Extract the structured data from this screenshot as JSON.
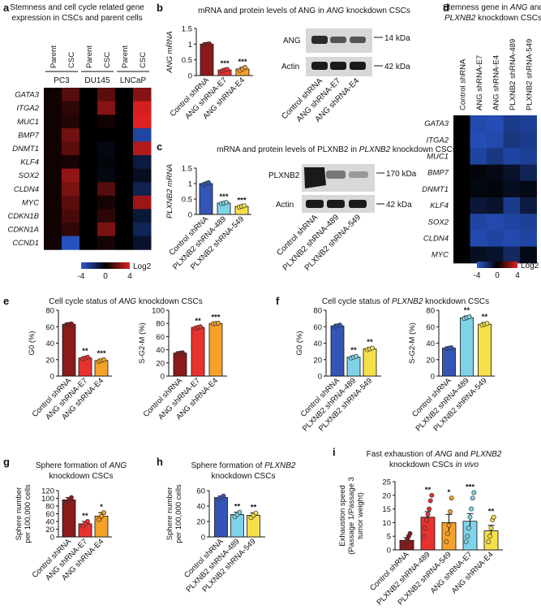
{
  "panels": {
    "a": {
      "letter": "a",
      "title": [
        "Stemness and cell cycle related gene",
        "expression in CSCs and parent cells"
      ]
    },
    "b": {
      "letter": "b",
      "title_parts": [
        "mRNA and protein levels of ANG in ",
        "ANG",
        " knockdown CSCs"
      ]
    },
    "c": {
      "letter": "c",
      "title_parts": [
        "mRNA and protein levels of PLXNB2 in ",
        "PLXNB2",
        " knockdown CSCs"
      ]
    },
    "d": {
      "letter": "d",
      "title_l1": "Stemness gene in ",
      "title_l1_i1": "ANG",
      "title_l1_mid": " and",
      "title_l2_i": "PLXNB2",
      "title_l2": " knockdown CSCs"
    },
    "e": {
      "letter": "e",
      "title_parts": [
        "Cell cycle status of ",
        "ANG",
        " knockdown CSCs"
      ]
    },
    "f": {
      "letter": "f",
      "title_parts": [
        "Cell cycle status of ",
        "PLXNB2",
        " knockdown CSCs"
      ]
    },
    "g": {
      "letter": "g",
      "title_l1": "Sphere formation of ",
      "title_l1_i": "ANG",
      "title_l2": "knockdown CSCs"
    },
    "h": {
      "letter": "h",
      "title_l1": "Sphere formation of ",
      "title_l1_i": "PLXNB2",
      "title_l2": "knockdown CSCs"
    },
    "i": {
      "letter": "i",
      "title_l1_a": "Fast exhaustion of ",
      "title_l1_i1": "ANG",
      "title_l1_b": " and ",
      "title_l1_i2": "PLXNB2",
      "title_l2_a": "knockdown CSCs ",
      "title_l2_i": "in vivo"
    }
  },
  "heatmap_colors": {
    "low": "#2b5bd6",
    "mid": "#000000",
    "high": "#e02020"
  },
  "westerns": {
    "b": {
      "bands": [
        "ANG",
        "Actin"
      ],
      "sizes": [
        "14 kDa",
        "42 kDa"
      ],
      "lanes": [
        "Control shRNA",
        "ANG shRNA-E7",
        "ANG shRNA-E4"
      ]
    },
    "c": {
      "bands": [
        "PLXNB2",
        "Actin"
      ],
      "sizes": [
        "170 kDa",
        "42 kDa"
      ],
      "lanes": [
        "Control shRNA",
        "PLXNB2 shRNA-489",
        "PLXNB2 shRNA-549"
      ]
    }
  },
  "chart_data": [
    {
      "id": "a",
      "type": "heatmap",
      "groups": [
        "PC3",
        "DU145",
        "LNCaP"
      ],
      "columns": [
        "Parent",
        "CSC",
        "Parent",
        "CSC",
        "Parent",
        "CSC"
      ],
      "rows": [
        "GATA3",
        "ITGA2",
        "MUC1",
        "BMP7",
        "DNMT1",
        "KLF4",
        "SOX2",
        "CLDN4",
        "MYC",
        "CDKN1B",
        "CDKN1A",
        "CCND1"
      ],
      "values": [
        [
          0.3,
          1.5,
          0.0,
          1.6,
          0.0,
          2.4
        ],
        [
          0.3,
          0.8,
          0.0,
          2.4,
          0.0,
          3.8
        ],
        [
          0.3,
          0.6,
          0.0,
          0.3,
          0.0,
          4.0
        ],
        [
          0.3,
          2.0,
          0.0,
          0.0,
          0.0,
          -3.0
        ],
        [
          0.3,
          1.6,
          0.0,
          -0.3,
          0.0,
          3.2
        ],
        [
          0.3,
          0.4,
          0.0,
          -0.2,
          0.0,
          -1.2
        ],
        [
          0.3,
          2.6,
          0.0,
          -0.3,
          0.0,
          -0.6
        ],
        [
          0.3,
          2.2,
          0.0,
          1.5,
          0.0,
          -1.5
        ],
        [
          0.3,
          1.6,
          0.0,
          0.4,
          0.0,
          2.8
        ],
        [
          0.3,
          1.3,
          0.0,
          0.8,
          0.0,
          -1.0
        ],
        [
          0.3,
          0.9,
          0.0,
          2.2,
          0.0,
          -1.6
        ],
        [
          0.3,
          -3.5,
          0.0,
          0.4,
          0.0,
          -0.8
        ]
      ],
      "legend_ticks": [
        "-4",
        "0",
        "4"
      ],
      "legend_label": "Log2"
    },
    {
      "id": "b",
      "type": "bar",
      "ylabel": "ANG mRNA",
      "categories": [
        "Control shRNA",
        "ANG shRNA-E7",
        "ANG shRNA-E4"
      ],
      "values": [
        1.0,
        0.18,
        0.21
      ],
      "errors": [
        0.02,
        0.03,
        0.05
      ],
      "points": [
        [
          0.99,
          1.0,
          1.01
        ],
        [
          0.15,
          0.18,
          0.2
        ],
        [
          0.16,
          0.21,
          0.26
        ]
      ],
      "sig": [
        "",
        "***",
        "***"
      ],
      "ylim": [
        0,
        1.5
      ],
      "yticks": [
        0,
        0.5,
        1.0,
        1.5
      ],
      "colors": [
        "#8b1a1a",
        "#e8322e",
        "#f5a229"
      ]
    },
    {
      "id": "c",
      "type": "bar",
      "ylabel": "PLXNB2 mRNA",
      "categories": [
        "Control shRNA",
        "PLXNB2 shRNA-489",
        "PLXNB2 shRNA-549"
      ],
      "values": [
        1.0,
        0.37,
        0.26
      ],
      "errors": [
        0.03,
        0.02,
        0.02
      ],
      "points": [
        [
          0.97,
          1.0,
          1.03
        ],
        [
          0.35,
          0.37,
          0.39
        ],
        [
          0.24,
          0.26,
          0.28
        ]
      ],
      "sig": [
        "",
        "***",
        "***"
      ],
      "ylim": [
        0,
        1.5
      ],
      "yticks": [
        0,
        0.5,
        1.0,
        1.5
      ],
      "colors": [
        "#3355b5",
        "#7fd3e8",
        "#f5e04a"
      ]
    },
    {
      "id": "d",
      "type": "heatmap",
      "columns": [
        "Control shRNA",
        "ANG shRNA-E7",
        "ANG shRNA-E4",
        "PLXNB2 shRNA-489",
        "PLXNB2 shRNA-549"
      ],
      "rows": [
        "GATA3",
        "ITGA2",
        "MUC1",
        "BMP7",
        "DNMT1",
        "KLF4",
        "SOX2",
        "CLDN4",
        "MYC"
      ],
      "values": [
        [
          0,
          -3.2,
          -3.4,
          -2.6,
          -2.8
        ],
        [
          0,
          -3.4,
          -3.2,
          -2.4,
          -2.6
        ],
        [
          0,
          -3.0,
          -2.4,
          -3.0,
          -2.8
        ],
        [
          0,
          -0.2,
          -0.4,
          -0.8,
          -1.6
        ],
        [
          0,
          -0.3,
          -0.2,
          -0.6,
          -0.4
        ],
        [
          0,
          -1.0,
          -0.8,
          -2.6,
          -1.2
        ],
        [
          0,
          -3.0,
          -3.2,
          -3.0,
          -2.8
        ],
        [
          0,
          -3.2,
          -3.0,
          -3.2,
          -3.0
        ],
        [
          0,
          -0.6,
          -0.8,
          -1.8,
          -0.4
        ]
      ],
      "legend_ticks": [
        "-4",
        "0",
        "4"
      ],
      "legend_label": "Log2"
    },
    {
      "id": "e1",
      "type": "bar",
      "ylabel": "G0 (%)",
      "categories": [
        "Control shRNA",
        "ANG shRNA-E7",
        "ANG shRNA-E4"
      ],
      "values": [
        63,
        22,
        19
      ],
      "errors": [
        0.5,
        1.5,
        1.5
      ],
      "points": [
        [
          62.5,
          63,
          63.5
        ],
        [
          21,
          22,
          23
        ],
        [
          18,
          19,
          20
        ]
      ],
      "sig": [
        "",
        "**",
        "***"
      ],
      "ylim": [
        0,
        80
      ],
      "yticks": [
        0,
        20,
        40,
        60,
        80
      ],
      "colors": [
        "#8b1a1a",
        "#e8322e",
        "#f5a229"
      ]
    },
    {
      "id": "e2",
      "type": "bar",
      "ylabel": "S-G2-M (%)",
      "categories": [
        "Control shRNA",
        "ANG shRNA-E7",
        "ANG shRNA-E4"
      ],
      "values": [
        35,
        74,
        80
      ],
      "errors": [
        1,
        1.5,
        1
      ],
      "points": [
        [
          34.5,
          35,
          35.5
        ],
        [
          73,
          74,
          75
        ],
        [
          79.5,
          80,
          80.5
        ]
      ],
      "sig": [
        "",
        "**",
        "***"
      ],
      "ylim": [
        0,
        100
      ],
      "yticks": [
        0,
        20,
        40,
        60,
        80,
        100
      ],
      "colors": [
        "#8b1a1a",
        "#e8322e",
        "#f5a229"
      ]
    },
    {
      "id": "f1",
      "type": "bar",
      "ylabel": "G0 (%)",
      "categories": [
        "Control shRNA",
        "PLXNB2 shRNA-489",
        "PLXNB2 shRNA-549"
      ],
      "values": [
        61,
        23,
        33
      ],
      "errors": [
        2,
        1.5,
        1.5
      ],
      "points": [
        [
          60,
          61,
          62
        ],
        [
          22,
          23,
          24
        ],
        [
          32,
          33,
          34
        ]
      ],
      "sig": [
        "",
        "**",
        "**"
      ],
      "ylim": [
        0,
        80
      ],
      "yticks": [
        0,
        20,
        40,
        60,
        80
      ],
      "colors": [
        "#3355b5",
        "#7fd3e8",
        "#f5e04a"
      ]
    },
    {
      "id": "f2",
      "type": "bar",
      "ylabel": "S-G2-M (%)",
      "categories": [
        "Control shRNA",
        "PLXNB2 shRNA-489",
        "PLXNB2 shRNA-549"
      ],
      "values": [
        34,
        71,
        63
      ],
      "errors": [
        1,
        2,
        2
      ],
      "points": [
        [
          33.5,
          34,
          34.5
        ],
        [
          70,
          71,
          72
        ],
        [
          62,
          63,
          64
        ]
      ],
      "sig": [
        "",
        "**",
        "**"
      ],
      "ylim": [
        0,
        80
      ],
      "yticks": [
        0,
        20,
        40,
        60,
        80
      ],
      "colors": [
        "#3355b5",
        "#7fd3e8",
        "#f5e04a"
      ]
    },
    {
      "id": "g",
      "type": "bar",
      "ylabel": [
        "Sphere number",
        "per 100,000 cells"
      ],
      "categories": [
        "Control shRNA",
        "ANG shRNA-E7",
        "ANG shRNA-E4"
      ],
      "values": [
        96,
        34,
        54
      ],
      "errors": [
        6,
        6,
        9
      ],
      "points": [
        [
          90,
          96,
          102
        ],
        [
          28,
          34,
          40
        ],
        [
          45,
          54,
          63
        ]
      ],
      "sig": [
        "",
        "**",
        "*"
      ],
      "ylim": [
        0,
        120
      ],
      "yticks": [
        0,
        20,
        40,
        60,
        80,
        100,
        120
      ],
      "colors": [
        "#8b1a1a",
        "#e8322e",
        "#f5a229"
      ]
    },
    {
      "id": "h",
      "type": "bar",
      "ylabel": [
        "Sphere number",
        "per 100,000 cells"
      ],
      "categories": [
        "Control shRNA",
        "PLXNB2 shRNA-489",
        "PLXNB2 shRNA-549"
      ],
      "values": [
        51,
        29,
        28
      ],
      "errors": [
        2,
        3,
        3
      ],
      "points": [
        [
          49,
          51,
          53
        ],
        [
          26,
          29,
          32
        ],
        [
          25,
          28,
          31
        ]
      ],
      "sig": [
        "",
        "**",
        "**"
      ],
      "ylim": [
        0,
        60
      ],
      "yticks": [
        0,
        20,
        40,
        60
      ],
      "colors": [
        "#3355b5",
        "#7fd3e8",
        "#f5e04a"
      ]
    },
    {
      "id": "i",
      "type": "bar",
      "ylabel": [
        "Exhaustion speed",
        "(Passage 1/Passage 3",
        "tumor weight)"
      ],
      "categories": [
        "Control shRNA",
        "PLXNB2 shRNA-489",
        "PLXNB2 shRNA-549",
        "ANG shRNA-E7",
        "ANG shRNA-E4"
      ],
      "values": [
        3.5,
        12,
        10,
        10.5,
        7
      ],
      "errors": [
        1,
        2,
        3,
        2.8,
        2
      ],
      "points": [
        [
          1,
          2,
          3,
          4,
          5,
          6
        ],
        [
          5,
          8,
          11,
          13,
          15,
          18,
          20
        ],
        [
          3,
          6,
          9,
          14,
          19
        ],
        [
          3,
          5,
          8,
          12,
          15,
          19,
          21
        ],
        [
          3,
          5,
          8,
          11,
          12
        ]
      ],
      "sig": [
        "",
        "**",
        "*",
        "***",
        "**"
      ],
      "ylim": [
        0,
        25
      ],
      "yticks": [
        0,
        5,
        10,
        15,
        20,
        25
      ],
      "colors": [
        "#8b1a1a",
        "#e8322e",
        "#f5a229",
        "#7fd3e8",
        "#f5e04a"
      ]
    }
  ]
}
